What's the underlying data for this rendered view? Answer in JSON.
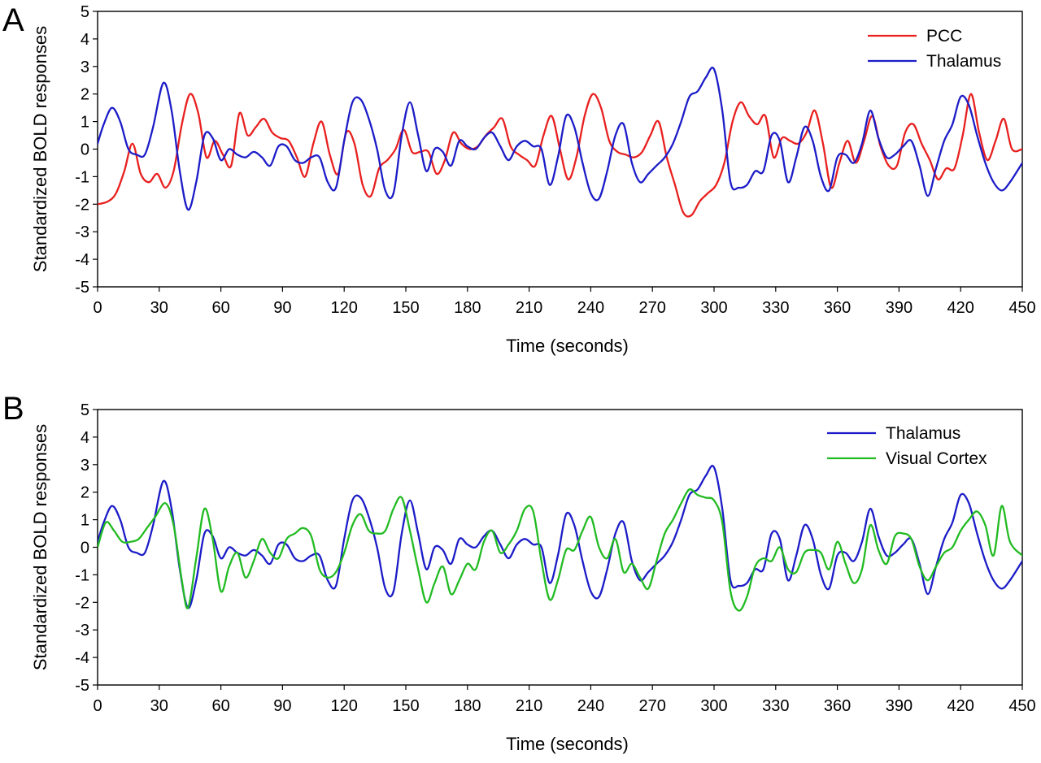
{
  "chart_data": [
    {
      "panel_label": "A",
      "type": "line",
      "xlabel": "Time (seconds)",
      "ylabel": "Standardized BOLD responses",
      "xlim": [
        0,
        450
      ],
      "ylim": [
        -5,
        5
      ],
      "xticks": [
        0,
        30,
        60,
        90,
        120,
        150,
        180,
        210,
        240,
        270,
        300,
        330,
        360,
        390,
        420,
        450
      ],
      "yticks": [
        5,
        4,
        3,
        2,
        1,
        0,
        -1,
        -2,
        -3,
        -4,
        -5
      ],
      "grid": false,
      "legend_position": "top-right",
      "series": [
        {
          "name": "PCC",
          "color": "#e8201f",
          "x": [
            0,
            5,
            9,
            13,
            17,
            21,
            25,
            29,
            33,
            37,
            41,
            45,
            49,
            53,
            57,
            61,
            65,
            69,
            73,
            77,
            81,
            85,
            89,
            93,
            97,
            101,
            105,
            109,
            113,
            117,
            121,
            125,
            129,
            133,
            137,
            141,
            145,
            149,
            153,
            157,
            161,
            165,
            169,
            173,
            177,
            181,
            185,
            189,
            193,
            197,
            201,
            205,
            209,
            213,
            217,
            221,
            225,
            229,
            233,
            237,
            241,
            245,
            249,
            253,
            257,
            261,
            265,
            269,
            273,
            277,
            281,
            285,
            289,
            293,
            297,
            301,
            305,
            309,
            313,
            317,
            321,
            325,
            329,
            333,
            337,
            341,
            345,
            349,
            353,
            357,
            361,
            365,
            369,
            373,
            377,
            381,
            385,
            389,
            393,
            397,
            401,
            405,
            409,
            413,
            417,
            421,
            425,
            429,
            433,
            437,
            441,
            445,
            450
          ],
          "y": [
            -2.0,
            -1.9,
            -1.6,
            -0.8,
            0.2,
            -0.9,
            -1.2,
            -0.9,
            -1.4,
            -0.8,
            0.9,
            2.0,
            1.3,
            -0.3,
            0.3,
            -0.2,
            -0.6,
            1.3,
            0.5,
            0.8,
            1.1,
            0.6,
            0.4,
            0.3,
            -0.3,
            -1.0,
            0.2,
            1.0,
            -0.2,
            -0.9,
            0.6,
            0.2,
            -1.3,
            -1.7,
            -0.7,
            -0.4,
            0.0,
            0.7,
            -0.1,
            -0.1,
            -0.1,
            -0.9,
            -0.4,
            0.6,
            0.2,
            0.0,
            0.1,
            0.5,
            0.8,
            1.1,
            0.1,
            -0.2,
            -0.4,
            -0.6,
            0.5,
            1.2,
            0.0,
            -1.1,
            -0.3,
            1.2,
            2.0,
            1.5,
            0.3,
            -0.1,
            -0.2,
            -0.3,
            -0.1,
            0.5,
            1.0,
            -0.3,
            -1.3,
            -2.3,
            -2.4,
            -1.9,
            -1.6,
            -1.3,
            -0.5,
            1.0,
            1.7,
            1.2,
            0.9,
            1.2,
            -0.3,
            0.4,
            0.3,
            0.2,
            0.6,
            1.4,
            0.2,
            -1.4,
            -0.5,
            0.3,
            -0.5,
            0.3,
            1.2,
            0.1,
            -0.6,
            -0.6,
            0.6,
            0.9,
            0.2,
            -0.4,
            -1.1,
            -0.7,
            -0.7,
            0.5,
            2.0,
            0.6,
            -0.4,
            0.3,
            1.1,
            0.0,
            0.0
          ]
        },
        {
          "name": "Thalamus",
          "color": "#1c1cc8",
          "x": [
            0,
            3,
            7,
            11,
            15,
            19,
            23,
            27,
            32,
            36,
            40,
            44,
            48,
            52,
            56,
            60,
            64,
            68,
            72,
            76,
            80,
            84,
            88,
            92,
            96,
            100,
            104,
            108,
            112,
            116,
            120,
            124,
            128,
            132,
            136,
            140,
            144,
            148,
            152,
            156,
            160,
            164,
            168,
            172,
            176,
            180,
            184,
            188,
            192,
            196,
            200,
            204,
            208,
            212,
            216,
            220,
            224,
            228,
            232,
            236,
            240,
            244,
            248,
            252,
            256,
            260,
            264,
            268,
            272,
            276,
            280,
            284,
            288,
            292,
            296,
            300,
            304,
            308,
            312,
            316,
            320,
            324,
            328,
            332,
            336,
            340,
            344,
            348,
            352,
            356,
            360,
            364,
            368,
            372,
            376,
            380,
            384,
            388,
            392,
            396,
            400,
            404,
            408,
            412,
            416,
            420,
            424,
            428,
            432,
            436,
            440,
            444,
            450
          ],
          "y": [
            0.2,
            0.9,
            1.5,
            1.0,
            0.0,
            -0.2,
            -0.2,
            0.8,
            2.4,
            1.4,
            -0.8,
            -2.2,
            -1.2,
            0.5,
            0.4,
            -0.4,
            0.0,
            -0.2,
            -0.3,
            -0.1,
            -0.3,
            -0.6,
            0.1,
            0.1,
            -0.4,
            -0.5,
            -0.3,
            -0.3,
            -1.2,
            -1.4,
            0.3,
            1.7,
            1.8,
            1.1,
            0.0,
            -1.5,
            -1.6,
            0.5,
            1.7,
            0.5,
            -0.8,
            0.0,
            -0.1,
            -0.6,
            0.3,
            0.1,
            0.0,
            0.4,
            0.6,
            0.1,
            -0.4,
            0.1,
            0.3,
            0.1,
            0.0,
            -1.3,
            -0.3,
            1.2,
            0.8,
            -0.5,
            -1.6,
            -1.8,
            -0.8,
            0.5,
            0.9,
            -0.5,
            -1.2,
            -0.9,
            -0.6,
            -0.3,
            0.2,
            1.0,
            1.9,
            2.1,
            2.6,
            2.9,
            1.4,
            -1.2,
            -1.4,
            -1.3,
            -0.8,
            -0.8,
            0.5,
            0.3,
            -1.2,
            -0.3,
            0.8,
            0.3,
            -1.0,
            -1.5,
            -0.3,
            -0.2,
            -0.5,
            0.2,
            1.4,
            0.4,
            -0.3,
            -0.2,
            0.1,
            0.3,
            -0.6,
            -1.7,
            -0.7,
            0.3,
            0.9,
            1.9,
            1.6,
            0.5,
            -0.5,
            -1.2,
            -1.5,
            -1.2,
            -0.5
          ]
        }
      ]
    },
    {
      "panel_label": "B",
      "type": "line",
      "xlabel": "Time (seconds)",
      "ylabel": "Standardized BOLD responses",
      "xlim": [
        0,
        450
      ],
      "ylim": [
        -5,
        5
      ],
      "xticks": [
        0,
        30,
        60,
        90,
        120,
        150,
        180,
        210,
        240,
        270,
        300,
        330,
        360,
        390,
        420,
        450
      ],
      "yticks": [
        5,
        4,
        3,
        2,
        1,
        0,
        -1,
        -2,
        -3,
        -4,
        -5
      ],
      "grid": false,
      "legend_position": "top-right",
      "series": [
        {
          "name": "Thalamus",
          "color": "#1c1cc8",
          "x": [
            0,
            3,
            7,
            11,
            15,
            19,
            23,
            27,
            32,
            36,
            40,
            44,
            48,
            52,
            56,
            60,
            64,
            68,
            72,
            76,
            80,
            84,
            88,
            92,
            96,
            100,
            104,
            108,
            112,
            116,
            120,
            124,
            128,
            132,
            136,
            140,
            144,
            148,
            152,
            156,
            160,
            164,
            168,
            172,
            176,
            180,
            184,
            188,
            192,
            196,
            200,
            204,
            208,
            212,
            216,
            220,
            224,
            228,
            232,
            236,
            240,
            244,
            248,
            252,
            256,
            260,
            264,
            268,
            272,
            276,
            280,
            284,
            288,
            292,
            296,
            300,
            304,
            308,
            312,
            316,
            320,
            324,
            328,
            332,
            336,
            340,
            344,
            348,
            352,
            356,
            360,
            364,
            368,
            372,
            376,
            380,
            384,
            388,
            392,
            396,
            400,
            404,
            408,
            412,
            416,
            420,
            424,
            428,
            432,
            436,
            440,
            444,
            450
          ],
          "y": [
            0.2,
            0.9,
            1.5,
            1.0,
            0.0,
            -0.2,
            -0.2,
            0.8,
            2.4,
            1.4,
            -0.8,
            -2.2,
            -1.2,
            0.5,
            0.4,
            -0.4,
            0.0,
            -0.2,
            -0.3,
            -0.1,
            -0.3,
            -0.6,
            0.1,
            0.1,
            -0.4,
            -0.5,
            -0.3,
            -0.3,
            -1.2,
            -1.4,
            0.3,
            1.7,
            1.8,
            1.1,
            0.0,
            -1.5,
            -1.6,
            0.5,
            1.7,
            0.5,
            -0.8,
            0.0,
            -0.1,
            -0.6,
            0.3,
            0.1,
            0.0,
            0.4,
            0.6,
            0.1,
            -0.4,
            0.1,
            0.3,
            0.1,
            0.0,
            -1.3,
            -0.3,
            1.2,
            0.8,
            -0.5,
            -1.6,
            -1.8,
            -0.8,
            0.5,
            0.9,
            -0.5,
            -1.2,
            -0.9,
            -0.6,
            -0.3,
            0.2,
            1.0,
            1.9,
            2.1,
            2.6,
            2.9,
            1.4,
            -1.2,
            -1.4,
            -1.3,
            -0.8,
            -0.8,
            0.5,
            0.3,
            -1.2,
            -0.3,
            0.8,
            0.3,
            -1.0,
            -1.5,
            -0.3,
            -0.2,
            -0.5,
            0.2,
            1.4,
            0.4,
            -0.3,
            -0.2,
            0.1,
            0.3,
            -0.6,
            -1.7,
            -0.7,
            0.3,
            0.9,
            1.9,
            1.6,
            0.5,
            -0.5,
            -1.2,
            -1.5,
            -1.2,
            -0.5
          ]
        },
        {
          "name": "Visual Cortex",
          "color": "#22bb22",
          "x": [
            0,
            4,
            8,
            12,
            16,
            20,
            24,
            28,
            33,
            37,
            41,
            44,
            48,
            52,
            56,
            60,
            64,
            68,
            72,
            76,
            80,
            84,
            88,
            92,
            96,
            100,
            104,
            108,
            112,
            116,
            120,
            124,
            128,
            132,
            136,
            140,
            144,
            148,
            152,
            156,
            160,
            164,
            168,
            172,
            176,
            180,
            184,
            188,
            192,
            196,
            200,
            204,
            208,
            212,
            216,
            220,
            224,
            228,
            232,
            236,
            240,
            244,
            248,
            252,
            256,
            260,
            264,
            268,
            272,
            276,
            280,
            284,
            288,
            292,
            296,
            300,
            304,
            308,
            312,
            316,
            320,
            324,
            328,
            332,
            336,
            340,
            344,
            348,
            352,
            356,
            360,
            364,
            368,
            372,
            376,
            380,
            384,
            388,
            392,
            396,
            400,
            404,
            408,
            412,
            416,
            420,
            424,
            428,
            432,
            436,
            440,
            444,
            450
          ],
          "y": [
            0.0,
            0.9,
            0.6,
            0.2,
            0.2,
            0.3,
            0.7,
            1.1,
            1.6,
            0.8,
            -1.2,
            -2.2,
            -0.4,
            1.4,
            0.3,
            -1.6,
            -0.7,
            -0.2,
            -1.1,
            -0.5,
            0.3,
            -0.2,
            -0.4,
            0.3,
            0.5,
            0.7,
            0.4,
            -0.8,
            -1.1,
            -0.9,
            -0.2,
            0.8,
            1.2,
            0.6,
            0.5,
            0.6,
            1.4,
            1.8,
            0.6,
            -0.8,
            -2.0,
            -1.3,
            -0.7,
            -1.7,
            -1.2,
            -0.6,
            -0.8,
            0.2,
            0.6,
            -0.2,
            0.1,
            0.6,
            1.4,
            1.3,
            -0.5,
            -1.9,
            -1.2,
            -0.1,
            -0.1,
            0.6,
            1.1,
            0.0,
            -0.4,
            0.3,
            -0.9,
            -0.6,
            -1.1,
            -1.5,
            -0.5,
            0.5,
            1.0,
            1.6,
            2.1,
            1.9,
            1.8,
            1.7,
            0.9,
            -1.6,
            -2.3,
            -1.8,
            -0.7,
            -0.4,
            -0.5,
            0.0,
            -0.8,
            -0.9,
            -0.2,
            -0.1,
            -0.2,
            -0.8,
            0.2,
            -0.6,
            -1.3,
            -0.8,
            0.8,
            -0.1,
            -0.6,
            0.4,
            0.5,
            0.3,
            -0.7,
            -1.2,
            -0.7,
            -0.2,
            0.0,
            0.6,
            1.0,
            1.3,
            0.8,
            -0.3,
            1.5,
            0.2,
            -0.3
          ]
        }
      ]
    }
  ]
}
